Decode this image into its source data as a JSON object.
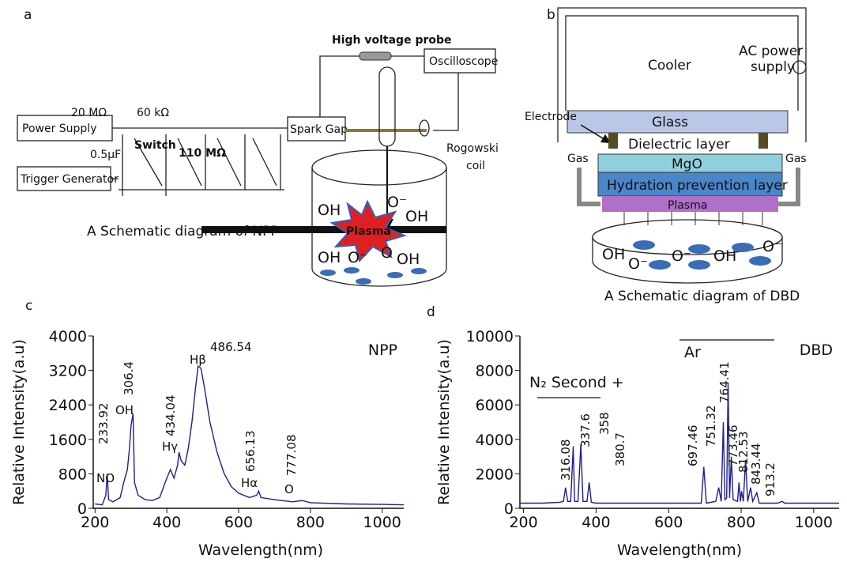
{
  "panel_labels": [
    "a",
    "b",
    "c",
    "d"
  ],
  "panel_a": {
    "probe": "High voltage probe",
    "oscilloscope": "Oscilloscope",
    "power_supply": "Power Supply",
    "resistor_1": "20 MΩ",
    "resistor_2": "60 kΩ",
    "capacitor": "0.5μF",
    "switch": "Switch",
    "resistor_3": "110 MΩ",
    "trigger": "Trigger Generator",
    "spark_gap": "Spark Gap",
    "coil": [
      "Rogowski",
      "coil"
    ],
    "plasma": "Plasma",
    "ions": [
      "OH",
      "O⁻",
      "OH",
      "OH",
      "O⁻",
      "O",
      "OH"
    ],
    "caption": "A Schematic diagram of NPP"
  },
  "panel_b": {
    "cooler": "Cooler",
    "power": [
      "AC power",
      "supply"
    ],
    "electrode": "Electrode",
    "glass": "Glass",
    "dielectric": "Dielectric layer",
    "gas": [
      "Gas",
      "Gas"
    ],
    "mgo": "MgO",
    "hydration": "Hydration prevention layer",
    "plasma": "Plasma",
    "ions": [
      "OH",
      "O⁻",
      "O⁻",
      "OH",
      "O⁻"
    ],
    "caption": "A Schematic diagram of DBD"
  },
  "chart_data": [
    {
      "type": "line",
      "x_label": "Wavelength(nm)",
      "y_label": "Relative Intensity(a.u)",
      "x": [
        200,
        220,
        230,
        234,
        238,
        250,
        270,
        280,
        290,
        296,
        300,
        306,
        310,
        320,
        340,
        360,
        380,
        400,
        410,
        420,
        430,
        434,
        440,
        450,
        460,
        470,
        480,
        487,
        495,
        505,
        520,
        540,
        560,
        580,
        600,
        630,
        650,
        656,
        662,
        700,
        750,
        777,
        800,
        900,
        1000,
        1060
      ],
      "series": [
        {
          "name": "NPP",
          "color": "#1f1f8f",
          "values": [
            100,
            80,
            300,
            800,
            200,
            150,
            250,
            600,
            900,
            1400,
            1900,
            2200,
            600,
            300,
            200,
            180,
            250,
            700,
            900,
            700,
            1000,
            1300,
            1100,
            1000,
            1400,
            2000,
            2800,
            3300,
            3250,
            2800,
            2000,
            1300,
            800,
            500,
            350,
            250,
            300,
            400,
            250,
            200,
            150,
            180,
            130,
            100,
            90,
            80
          ]
        }
      ],
      "xlim": [
        195,
        1060
      ],
      "ylim": [
        0,
        4000
      ],
      "xticks": [
        200,
        400,
        600,
        800,
        1000
      ],
      "yticks": [
        0,
        800,
        1600,
        2400,
        3200,
        4000
      ],
      "annotations": [
        "233.92",
        "NO",
        "306.4",
        "OH",
        "434.04",
        "Hγ",
        "Hβ",
        "486.54",
        "656.13",
        "Hα",
        "777.08",
        "O"
      ]
    },
    {
      "type": "line",
      "x_label": "Wavelength(nm)",
      "y_label": "Relative Intensity(a.u)",
      "x": [
        190,
        250,
        300,
        310,
        316,
        322,
        330,
        337,
        341,
        350,
        358,
        364,
        375,
        381,
        387,
        400,
        500,
        600,
        690,
        697,
        704,
        730,
        738,
        745,
        751,
        755,
        760,
        764,
        768,
        773,
        778,
        790,
        794,
        798,
        801,
        806,
        812,
        818,
        826,
        832,
        843,
        850,
        900,
        913,
        920,
        1000,
        1070
      ],
      "series": [
        {
          "name": "DBD",
          "color": "#1f1f8f",
          "values": [
            300,
            300,
            350,
            400,
            1200,
            400,
            400,
            3600,
            400,
            400,
            3700,
            400,
            400,
            1500,
            350,
            300,
            300,
            300,
            300,
            2400,
            300,
            400,
            1200,
            400,
            5000,
            500,
            600,
            7300,
            600,
            3000,
            500,
            400,
            1500,
            400,
            1000,
            400,
            2800,
            400,
            1200,
            400,
            900,
            300,
            300,
            400,
            300,
            300,
            300
          ]
        }
      ],
      "xlim": [
        190,
        1070
      ],
      "ylim": [
        0,
        10000
      ],
      "xticks": [
        200,
        400,
        600,
        800,
        1000
      ],
      "yticks": [
        0,
        2000,
        4000,
        6000,
        8000,
        10000
      ],
      "annotations": [
        "N₂ Second +",
        "Ar",
        "316.08",
        "337.6",
        "358",
        "380.7",
        "697.46",
        "751.32",
        "764.41",
        "773.46",
        "812.53",
        "843.44",
        "913.2"
      ]
    }
  ]
}
